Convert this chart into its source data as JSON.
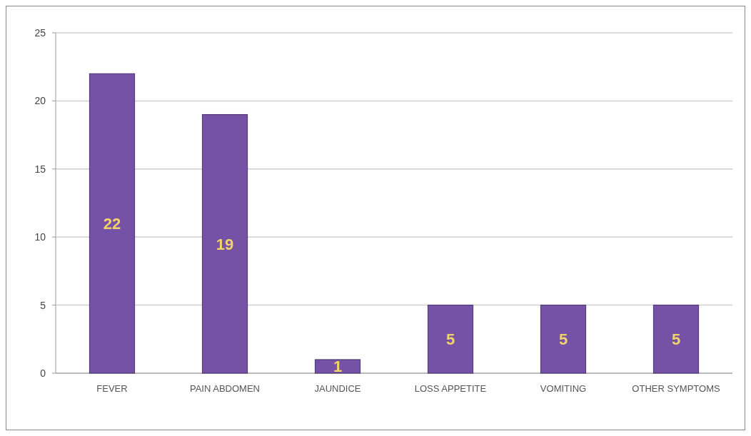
{
  "chart_data": {
    "type": "bar",
    "categories": [
      "FEVER",
      "PAIN ABDOMEN",
      "JAUNDICE",
      "LOSS APPETITE",
      "VOMITING",
      "OTHER SYMPTOMS"
    ],
    "values": [
      22,
      19,
      1,
      5,
      5,
      5
    ],
    "color": "#7652a6",
    "ylim": [
      0,
      25
    ],
    "yticks": [
      0,
      5,
      10,
      15,
      20,
      25
    ],
    "grid": "y",
    "data_labels": true
  }
}
